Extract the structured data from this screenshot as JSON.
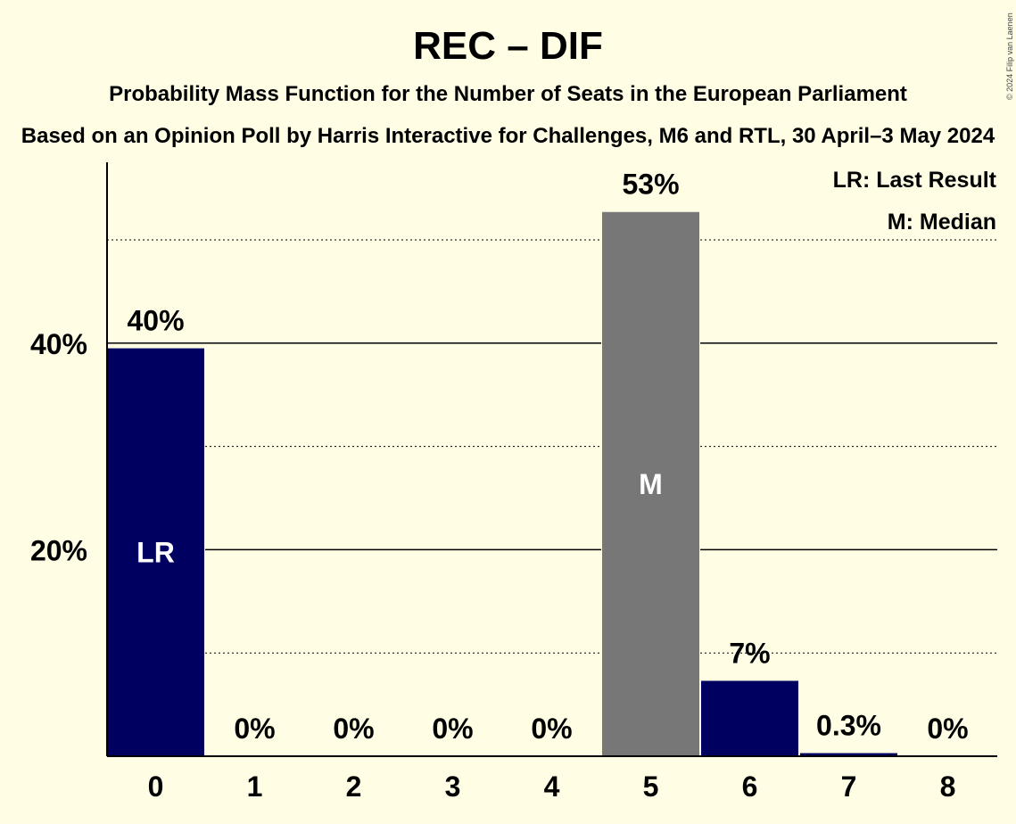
{
  "title": "REC – DIF",
  "subtitle1": "Probability Mass Function for the Number of Seats in the European Parliament",
  "subtitle2": "Based on an Opinion Poll by Harris Interactive for Challenges, M6 and RTL, 30 April–3 May 2024",
  "copyright": "© 2024 Filip van Laenen",
  "legend": {
    "last_result": "LR: Last Result",
    "median": "M: Median"
  },
  "colors": {
    "background": "#fffde4",
    "bar_primary": "#000060",
    "bar_median": "#777777"
  },
  "chart_data": {
    "type": "bar",
    "categories": [
      "0",
      "1",
      "2",
      "3",
      "4",
      "5",
      "6",
      "7",
      "8"
    ],
    "values": [
      39.5,
      0,
      0,
      0,
      0,
      52.7,
      7.3,
      0.3,
      0
    ],
    "value_labels": [
      "40%",
      "0%",
      "0%",
      "0%",
      "0%",
      "53%",
      "7%",
      "0.3%",
      "0%"
    ],
    "bar_markers": [
      "LR",
      "",
      "",
      "",
      "",
      "M",
      "",
      "",
      ""
    ],
    "bar_colors": [
      "#000060",
      "#000060",
      "#000060",
      "#000060",
      "#000060",
      "#777777",
      "#000060",
      "#000060",
      "#000060"
    ],
    "ylim": [
      0,
      57
    ],
    "yticks": [
      {
        "value": 20,
        "label": "20%"
      },
      {
        "value": 40,
        "label": "40%"
      }
    ],
    "gridlines_dotted": [
      10,
      30,
      50
    ],
    "gridlines_solid": [
      20,
      40
    ],
    "xlabel": "",
    "ylabel": ""
  }
}
